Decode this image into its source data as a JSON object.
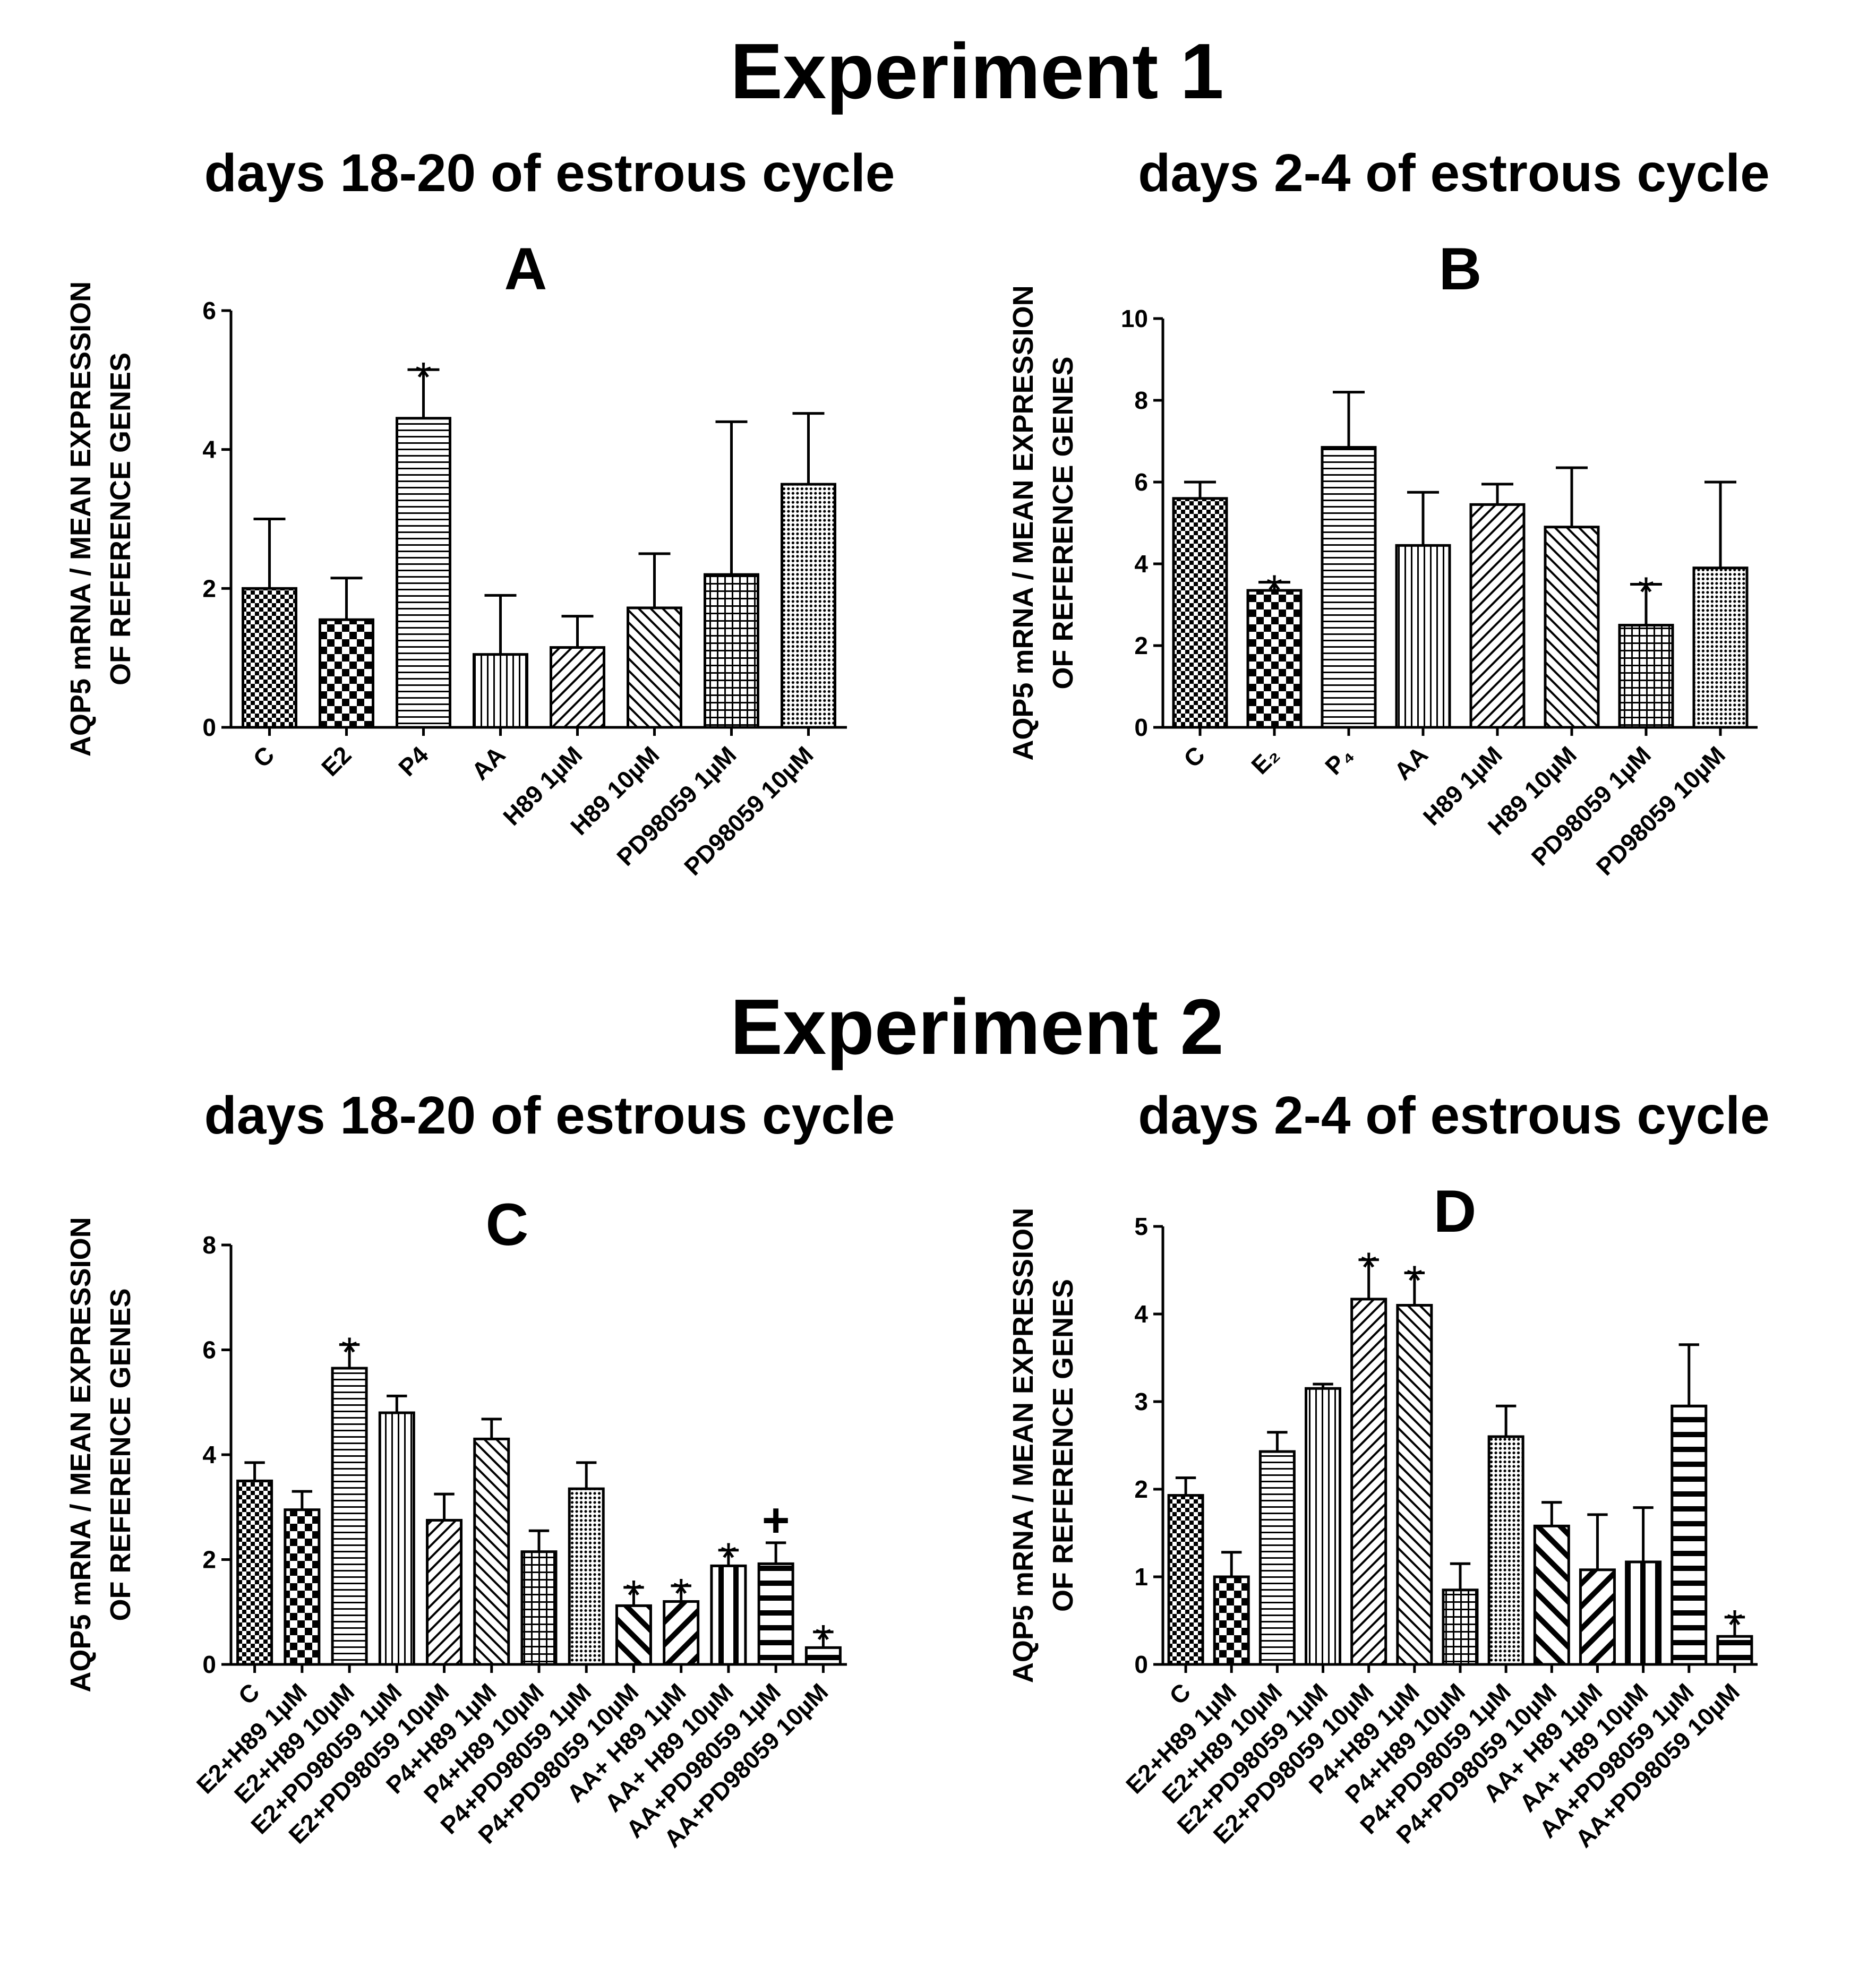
{
  "experiments": [
    {
      "title": "Experiment 1",
      "left_subtitle": "days 18-20 of estrous cycle",
      "right_subtitle": "days 2-4 of estrous cycle"
    },
    {
      "title": "Experiment 2",
      "left_subtitle": "days 18-20 of estrous cycle",
      "right_subtitle": "days 2-4 of estrous cycle"
    }
  ],
  "chart_data": [
    {
      "panel": "A",
      "type": "bar",
      "ylabel": [
        "AQP5 mRNA / MEAN EXPRESSION",
        "OF REFERENCE GENES"
      ],
      "ylim": [
        0,
        6
      ],
      "yticks": [
        0,
        2,
        4,
        6
      ],
      "categories": [
        "C",
        "E2",
        "P4",
        "AA",
        "H89 1µM",
        "H89 10µM",
        "PD98059 1µM",
        "PD98059 10µM"
      ],
      "values": [
        2.0,
        1.55,
        4.45,
        1.05,
        1.15,
        1.72,
        2.2,
        3.5
      ],
      "errors": [
        1.0,
        0.6,
        0.7,
        0.85,
        0.45,
        0.78,
        2.2,
        1.02
      ],
      "significance": [
        "",
        "",
        "*",
        "",
        "",
        "",
        "",
        ""
      ],
      "patterns": [
        "checks",
        "bigchecks",
        "hlines",
        "vlines",
        "diag",
        "backdiag",
        "grid",
        "dots"
      ]
    },
    {
      "panel": "B",
      "type": "bar",
      "ylabel": [
        "AQP5 mRNA / MEAN EXPRESSION",
        "OF REFERENCE GENES"
      ],
      "ylim": [
        0,
        10
      ],
      "yticks": [
        0,
        2,
        4,
        6,
        8,
        10
      ],
      "categories": [
        "C",
        "E₂",
        "P₄",
        "AA",
        "H89 1µM",
        "H89 10µM",
        "PD98059 1µM",
        "PD98059 10µM"
      ],
      "values": [
        5.6,
        3.35,
        6.85,
        4.45,
        5.45,
        4.9,
        2.5,
        3.9
      ],
      "errors": [
        0.4,
        0.2,
        1.35,
        1.3,
        0.5,
        1.45,
        1.0,
        2.1
      ],
      "significance": [
        "",
        "*",
        "",
        "",
        "",
        "",
        "*",
        ""
      ],
      "patterns": [
        "checks",
        "bigchecks",
        "hlines",
        "vlines",
        "diag",
        "backdiag",
        "grid",
        "dots"
      ]
    },
    {
      "panel": "C",
      "type": "bar",
      "ylabel": [
        "AQP5 mRNA / MEAN EXPRESSION",
        "OF REFERENCE GENES"
      ],
      "ylim": [
        0,
        8
      ],
      "yticks": [
        0,
        2,
        4,
        6,
        8
      ],
      "categories": [
        "C",
        "E2+H89 1µM",
        "E2+H89 10µM",
        "E2+PD98059 1µM",
        "E2+PD98059 10µM",
        "P4+H89 1µM",
        "P4+H89 10µM",
        "P4+PD98059 1µM",
        "P4+PD98059 10µM",
        "AA+ H89 1µM",
        "AA+ H89 10µM",
        "AA+PD98059 1µM",
        "AA+PD98059 10µM"
      ],
      "values": [
        3.5,
        2.95,
        5.65,
        4.8,
        2.75,
        4.3,
        2.15,
        3.35,
        1.12,
        1.2,
        1.88,
        1.92,
        0.32
      ],
      "errors": [
        0.35,
        0.35,
        0.45,
        0.32,
        0.5,
        0.38,
        0.4,
        0.5,
        0.35,
        0.3,
        0.3,
        0.4,
        0.3
      ],
      "significance": [
        "",
        "",
        "*",
        "",
        "",
        "",
        "",
        "",
        "*",
        "*",
        "*",
        "+",
        "*"
      ],
      "patterns": [
        "checks",
        "bigchecks",
        "hlines",
        "vlines",
        "diag",
        "backdiag",
        "grid",
        "dots",
        "thickback",
        "thickdiag",
        "thickvlines",
        "thickhlines",
        "thickhlines"
      ]
    },
    {
      "panel": "D",
      "type": "bar",
      "ylabel": [
        "AQP5 mRNA / MEAN EXPRESSION",
        "OF REFERENCE GENES"
      ],
      "ylim": [
        0,
        5
      ],
      "yticks": [
        0,
        1,
        2,
        3,
        4,
        5
      ],
      "categories": [
        "C",
        "E2+H89 1µM",
        "E2+H89 10µM",
        "E2+PD98059 1µM",
        "E2+PD98059 10µM",
        "P4+H89 1µM",
        "P4+H89 10µM",
        "P4+PD98059 1µM",
        "P4+PD98059 10µM",
        "AA+ H89 1µM",
        "AA+ H89 10µM",
        "AA+PD98059 1µM",
        "AA+PD98059 10µM"
      ],
      "values": [
        1.93,
        1.0,
        2.43,
        3.15,
        4.17,
        4.1,
        0.85,
        2.6,
        1.58,
        1.08,
        1.17,
        2.95,
        0.32
      ],
      "errors": [
        0.2,
        0.28,
        0.22,
        0.05,
        0.45,
        0.37,
        0.3,
        0.35,
        0.27,
        0.63,
        0.62,
        0.7,
        0.22
      ],
      "significance": [
        "",
        "",
        "",
        "",
        "*",
        "*",
        "",
        "",
        "",
        "",
        "",
        "",
        "*"
      ],
      "patterns": [
        "checks",
        "bigchecks",
        "hlines",
        "vlines",
        "diag",
        "backdiag",
        "grid",
        "dots",
        "thickback",
        "thickdiag",
        "thickvlines",
        "thickhlines",
        "thickhlines"
      ]
    }
  ]
}
